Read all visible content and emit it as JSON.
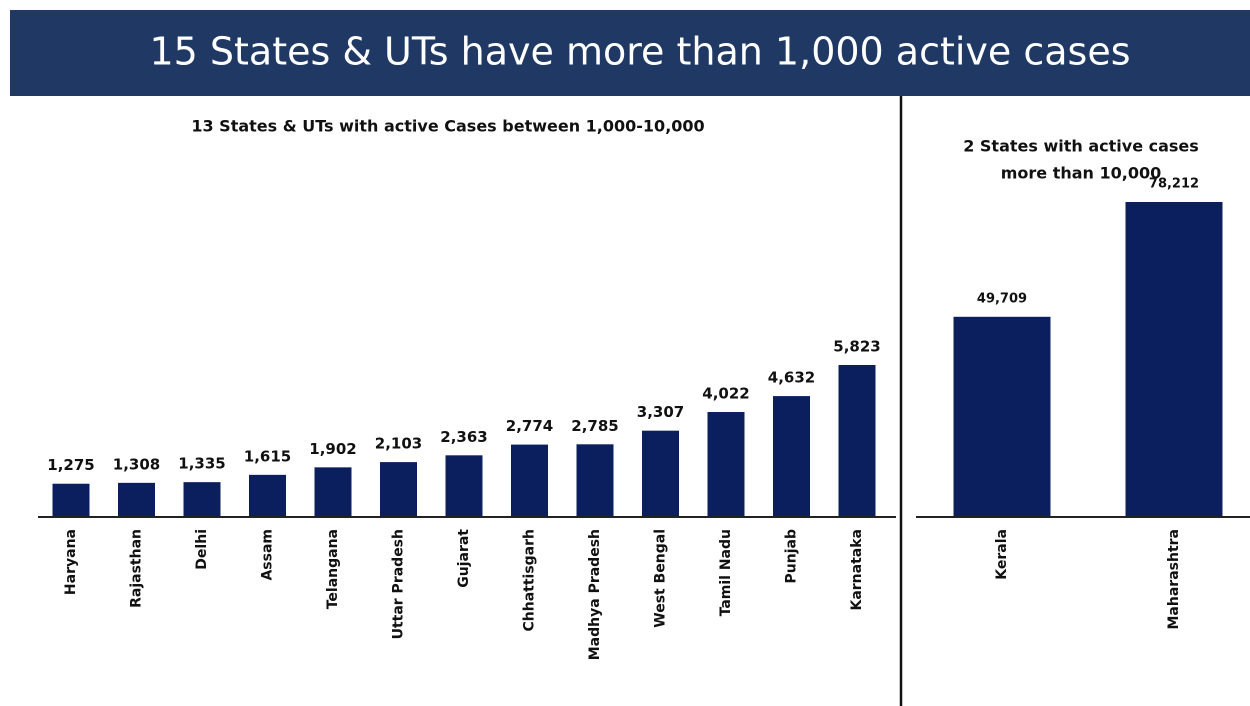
{
  "title": "15 States & UTs have more than 1,000 active cases",
  "chart_data": [
    {
      "type": "bar",
      "title": [
        "13 States & UTs with active Cases between 1,000-10,000"
      ],
      "categories": [
        "Haryana",
        "Rajasthan",
        "Delhi",
        "Assam",
        "Telangana",
        "Uttar Pradesh",
        "Gujarat",
        "Chhattisgarh",
        "Madhya Pradesh",
        "West Bengal",
        "Tamil Nadu",
        "Punjab",
        "Karnataka"
      ],
      "values": [
        1275,
        1308,
        1335,
        1615,
        1902,
        2103,
        2363,
        2774,
        2785,
        3307,
        4022,
        4632,
        5823
      ],
      "value_labels": [
        "1,275",
        "1,308",
        "1,335",
        "1,615",
        "1,902",
        "2,103",
        "2,363",
        "2,774",
        "2,785",
        "3,307",
        "4,022",
        "4,632",
        "5,823"
      ],
      "color": "#0b1f5e"
    },
    {
      "type": "bar",
      "title": [
        "2 States with active cases",
        "more than 10,000"
      ],
      "categories": [
        "Kerala",
        "Maharashtra"
      ],
      "values": [
        49709,
        78212
      ],
      "value_labels": [
        "49,709",
        "78,212"
      ],
      "color": "#0b1f5e"
    }
  ]
}
